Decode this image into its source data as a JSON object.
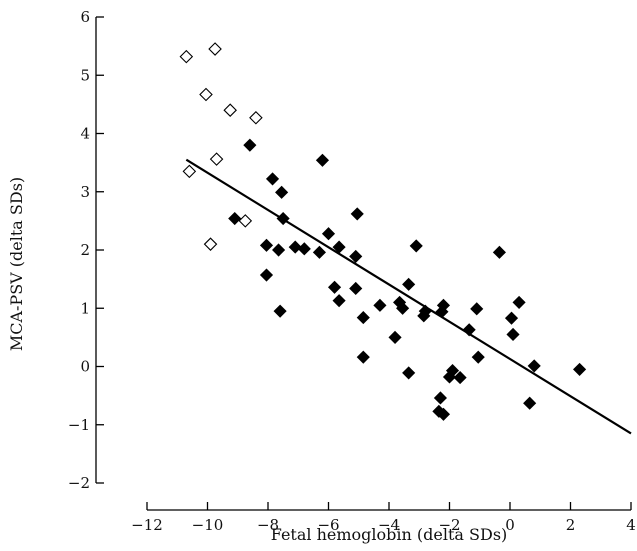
{
  "chart_data": {
    "type": "scatter",
    "title": "",
    "xlabel": "Fetal hemoglobin (delta SDs)",
    "ylabel": "MCA-PSV (delta SDs)",
    "xlim": [
      -12,
      4
    ],
    "ylim": [
      -2,
      6
    ],
    "x_ticks": [
      -12,
      -10,
      -8,
      -6,
      -4,
      -2,
      0,
      2,
      4
    ],
    "y_ticks": [
      -2,
      -1,
      0,
      1,
      2,
      3,
      4,
      5,
      6
    ],
    "x_tick_labels": [
      "−12",
      "−10",
      "−8",
      "−6",
      "−4",
      "−2",
      "0",
      "2",
      "4"
    ],
    "y_tick_labels": [
      "−2",
      "−1",
      "0",
      "1",
      "2",
      "3",
      "4",
      "5",
      "6"
    ],
    "grid": false,
    "series": [
      {
        "marker": "open-diamond",
        "color": "#000000",
        "points": [
          [
            -10.7,
            5.32
          ],
          [
            -10.6,
            3.35
          ],
          [
            -9.75,
            5.45
          ],
          [
            -10.05,
            4.67
          ],
          [
            -9.25,
            4.4
          ],
          [
            -8.4,
            4.27
          ],
          [
            -9.7,
            3.56
          ],
          [
            -9.9,
            2.1
          ],
          [
            -8.75,
            2.5
          ]
        ]
      },
      {
        "marker": "filled-diamond",
        "color": "#000000",
        "points": [
          [
            -8.6,
            3.8
          ],
          [
            -7.85,
            3.22
          ],
          [
            -7.55,
            2.99
          ],
          [
            -9.1,
            2.54
          ],
          [
            -7.5,
            2.54
          ],
          [
            -8.05,
            2.08
          ],
          [
            -7.65,
            2.0
          ],
          [
            -7.1,
            2.05
          ],
          [
            -6.8,
            2.02
          ],
          [
            -6.3,
            1.96
          ],
          [
            -6.2,
            3.54
          ],
          [
            -6.0,
            2.28
          ],
          [
            -5.65,
            2.05
          ],
          [
            -5.05,
            2.62
          ],
          [
            -5.1,
            1.89
          ],
          [
            -8.05,
            1.57
          ],
          [
            -7.6,
            0.95
          ],
          [
            -5.8,
            1.36
          ],
          [
            -5.65,
            1.13
          ],
          [
            -5.1,
            1.34
          ],
          [
            -4.85,
            0.84
          ],
          [
            -4.85,
            0.16
          ],
          [
            -4.3,
            1.05
          ],
          [
            -3.8,
            0.5
          ],
          [
            -3.65,
            1.1
          ],
          [
            -3.55,
            1.0
          ],
          [
            -3.35,
            1.41
          ],
          [
            -3.1,
            2.07
          ],
          [
            -3.35,
            -0.11
          ],
          [
            -2.85,
            0.87
          ],
          [
            -2.8,
            0.95
          ],
          [
            -2.2,
            1.05
          ],
          [
            -2.25,
            0.94
          ],
          [
            -2.3,
            -0.54
          ],
          [
            -2.35,
            -0.77
          ],
          [
            -2.2,
            -0.82
          ],
          [
            -2.0,
            -0.18
          ],
          [
            -1.9,
            -0.07
          ],
          [
            -1.65,
            -0.19
          ],
          [
            -1.35,
            0.63
          ],
          [
            -1.1,
            0.99
          ],
          [
            -1.05,
            0.16
          ],
          [
            -0.35,
            1.96
          ],
          [
            0.05,
            0.83
          ],
          [
            0.1,
            0.55
          ],
          [
            0.3,
            1.1
          ],
          [
            0.65,
            -0.63
          ],
          [
            0.8,
            0.01
          ],
          [
            2.3,
            -0.05
          ]
        ]
      }
    ],
    "regression_line": {
      "x": [
        -10.7,
        4.0
      ],
      "y": [
        3.55,
        -1.15
      ]
    }
  }
}
